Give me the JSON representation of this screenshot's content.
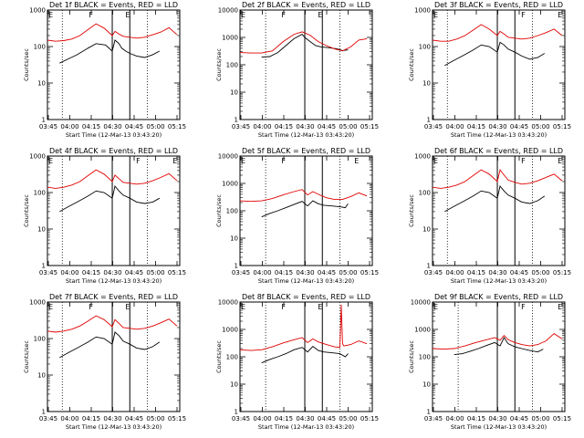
{
  "chart_data": [
    {
      "type": "line",
      "title": "Det 1f BLACK = Events, RED = LLD",
      "xlabel": "Start Time (12-Mar-13 03:43:20)",
      "ylabel": "Counts/sec",
      "scale": "log",
      "xlim": [
        0,
        98
      ],
      "ylim": [
        1,
        1000
      ],
      "xticks": [
        "03:45",
        "04:00",
        "04:15",
        "04:30",
        "04:45",
        "05:00",
        "05:15"
      ],
      "yticks": [
        "1",
        "10",
        "100",
        "1000"
      ],
      "markers": [
        {
          "label": "E",
          "x": 0
        },
        {
          "label": "F",
          "x": 30
        },
        {
          "label": "E",
          "x": 57
        }
      ],
      "dotted_x": [
        11,
        74
      ],
      "solid_x": [
        48,
        61
      ],
      "series": [
        {
          "name": "BLACK = Events",
          "x": [
            9,
            15,
            22,
            30,
            36,
            43,
            48,
            50,
            53,
            55,
            58,
            61,
            66,
            72,
            78,
            83
          ],
          "y": [
            35,
            45,
            60,
            90,
            120,
            110,
            75,
            150,
            120,
            90,
            75,
            65,
            55,
            50,
            60,
            75
          ]
        },
        {
          "name": "RED = LLD",
          "x": [
            0,
            6,
            12,
            18,
            24,
            30,
            36,
            42,
            48,
            50,
            53,
            56,
            61,
            66,
            72,
            78,
            84,
            90,
            96
          ],
          "y": [
            150,
            140,
            145,
            160,
            200,
            290,
            420,
            320,
            200,
            260,
            220,
            190,
            180,
            170,
            180,
            210,
            250,
            330,
            210
          ]
        }
      ]
    },
    {
      "type": "line",
      "title": "Det 2f BLACK = Events, RED = LLD",
      "xlabel": "Start Time (12-Mar-13 03:43:20)",
      "ylabel": "Counts/sec",
      "scale": "log",
      "xlim": [
        0,
        98
      ],
      "ylim": [
        1,
        10000
      ],
      "xticks": [
        "03:45",
        "04:00",
        "04:15",
        "04:30",
        "04:45",
        "05:00",
        "05:15"
      ],
      "yticks": [
        "1",
        "10",
        "100",
        "1000",
        "10000"
      ],
      "markers": [
        {
          "label": "E",
          "x": 0
        },
        {
          "label": "F",
          "x": 30
        },
        {
          "label": "E",
          "x": 57
        }
      ],
      "dotted_x": [
        19,
        74
      ],
      "solid_x": [
        48,
        61
      ],
      "series": [
        {
          "name": "BLACK = Events",
          "x": [
            16,
            22,
            28,
            34,
            40,
            46,
            48,
            52,
            56,
            60,
            66,
            72,
            76,
            80
          ],
          "y": [
            190,
            200,
            280,
            500,
            900,
            1300,
            1000,
            700,
            500,
            450,
            420,
            380,
            330,
            350
          ]
        },
        {
          "name": "RED = LLD",
          "x": [
            0,
            8,
            16,
            24,
            32,
            40,
            46,
            52,
            58,
            64,
            70,
            76,
            82,
            88,
            94
          ],
          "y": [
            280,
            270,
            270,
            320,
            700,
            1300,
            1600,
            1200,
            700,
            500,
            380,
            320,
            450,
            800,
            900
          ]
        }
      ]
    },
    {
      "type": "line",
      "title": "Det 3f BLACK = Events, RED = LLD",
      "xlabel": "Start Time (12-Mar-13 03:43:20)",
      "ylabel": "Counts/sec",
      "scale": "log",
      "xlim": [
        0,
        98
      ],
      "ylim": [
        1,
        1000
      ],
      "xticks": [
        "03:45",
        "04:00",
        "04:15",
        "04:30",
        "04:45",
        "05:00",
        "05:15"
      ],
      "yticks": [
        "1",
        "10",
        "100",
        "1000"
      ],
      "markers": [
        {
          "label": "E",
          "x": 0
        },
        {
          "label": "F",
          "x": 65
        },
        {
          "label": "E",
          "x": 92
        }
      ],
      "dotted_x": [
        11,
        74
      ],
      "solid_x": [
        48,
        61
      ],
      "series": [
        {
          "name": "BLACK = Events",
          "x": [
            9,
            15,
            22,
            30,
            36,
            42,
            48,
            50,
            53,
            56,
            61,
            66,
            72,
            78,
            83
          ],
          "y": [
            30,
            40,
            55,
            80,
            110,
            100,
            70,
            130,
            110,
            85,
            70,
            55,
            45,
            50,
            65
          ]
        },
        {
          "name": "RED = LLD",
          "x": [
            0,
            6,
            12,
            18,
            24,
            30,
            36,
            42,
            48,
            50,
            53,
            56,
            61,
            66,
            72,
            78,
            84,
            90,
            96
          ],
          "y": [
            150,
            140,
            140,
            160,
            200,
            280,
            400,
            300,
            200,
            260,
            220,
            180,
            170,
            160,
            170,
            200,
            240,
            300,
            200
          ]
        }
      ]
    },
    {
      "type": "line",
      "title": "Det 4f BLACK = Events, RED = LLD",
      "xlabel": "Start Time (12-Mar-13 03:43:20)",
      "ylabel": "Counts/sec",
      "scale": "log",
      "xlim": [
        0,
        98
      ],
      "ylim": [
        1,
        1000
      ],
      "xticks": [
        "03:45",
        "04:00",
        "04:15",
        "04:30",
        "04:45",
        "05:00",
        "05:15"
      ],
      "yticks": [
        "1",
        "10",
        "100",
        "1000"
      ],
      "markers": [
        {
          "label": "E",
          "x": 0
        },
        {
          "label": "F",
          "x": 65
        },
        {
          "label": "E",
          "x": 92
        }
      ],
      "dotted_x": [
        11,
        74
      ],
      "solid_x": [
        48,
        61
      ],
      "series": [
        {
          "name": "BLACK = Events",
          "x": [
            9,
            15,
            22,
            30,
            36,
            42,
            48,
            50,
            53,
            56,
            61,
            66,
            72,
            78,
            83
          ],
          "y": [
            30,
            40,
            55,
            80,
            110,
            100,
            70,
            150,
            110,
            85,
            70,
            55,
            50,
            55,
            70
          ]
        },
        {
          "name": "RED = LLD",
          "x": [
            0,
            6,
            12,
            18,
            24,
            30,
            36,
            42,
            48,
            50,
            53,
            56,
            61,
            66,
            72,
            78,
            84,
            90,
            96
          ],
          "y": [
            140,
            130,
            140,
            160,
            200,
            290,
            420,
            320,
            200,
            300,
            240,
            190,
            180,
            170,
            180,
            210,
            260,
            330,
            210
          ]
        }
      ]
    },
    {
      "type": "line",
      "title": "Det 5f BLACK = Events, RED = LLD",
      "xlabel": "Start Time (12-Mar-13 03:43:20)",
      "ylabel": "Counts/sec",
      "scale": "log",
      "xlim": [
        0,
        98
      ],
      "ylim": [
        1,
        10000
      ],
      "xticks": [
        "03:45",
        "04:00",
        "04:15",
        "04:30",
        "04:45",
        "05:00",
        "05:15"
      ],
      "yticks": [
        "1",
        "10",
        "100",
        "1000",
        "10000"
      ],
      "markers": [
        {
          "label": "E",
          "x": 0
        },
        {
          "label": "F",
          "x": 30
        },
        {
          "label": "E",
          "x": 84
        }
      ],
      "dotted_x": [
        19,
        74
      ],
      "solid_x": [
        48,
        61
      ],
      "series": [
        {
          "name": "BLACK = Events",
          "x": [
            16,
            22,
            28,
            34,
            40,
            46,
            50,
            54,
            58,
            62,
            68,
            74,
            78,
            80
          ],
          "y": [
            60,
            80,
            100,
            130,
            170,
            220,
            150,
            230,
            180,
            160,
            150,
            140,
            130,
            180
          ]
        },
        {
          "name": "RED = LLD",
          "x": [
            0,
            8,
            16,
            24,
            32,
            40,
            46,
            50,
            54,
            58,
            64,
            70,
            76,
            82,
            88,
            94
          ],
          "y": [
            230,
            220,
            230,
            280,
            380,
            500,
            600,
            380,
            500,
            400,
            300,
            260,
            260,
            330,
            450,
            350
          ]
        }
      ]
    },
    {
      "type": "line",
      "title": "Det 6f BLACK = Events, RED = LLD",
      "xlabel": "Start Time (12-Mar-13 03:43:20)",
      "ylabel": "Counts/sec",
      "scale": "log",
      "xlim": [
        0,
        98
      ],
      "ylim": [
        1,
        1000
      ],
      "xticks": [
        "03:45",
        "04:00",
        "04:15",
        "04:30",
        "04:45",
        "05:00",
        "05:15"
      ],
      "yticks": [
        "1",
        "10",
        "100",
        "1000"
      ],
      "markers": [
        {
          "label": "E",
          "x": 0
        },
        {
          "label": "F",
          "x": 65
        },
        {
          "label": "E",
          "x": 92
        }
      ],
      "dotted_x": [
        11,
        74
      ],
      "solid_x": [
        48,
        61
      ],
      "series": [
        {
          "name": "BLACK = Events",
          "x": [
            9,
            15,
            22,
            30,
            36,
            42,
            48,
            50,
            53,
            56,
            61,
            66,
            72,
            78,
            83
          ],
          "y": [
            30,
            40,
            55,
            80,
            110,
            100,
            70,
            150,
            110,
            85,
            70,
            55,
            50,
            60,
            80
          ]
        },
        {
          "name": "RED = LLD",
          "x": [
            0,
            6,
            12,
            18,
            24,
            30,
            36,
            42,
            48,
            50,
            53,
            56,
            61,
            66,
            72,
            78,
            84,
            90,
            96
          ],
          "y": [
            140,
            130,
            140,
            160,
            200,
            290,
            420,
            320,
            200,
            420,
            300,
            220,
            190,
            170,
            180,
            210,
            260,
            320,
            210
          ]
        }
      ]
    },
    {
      "type": "line",
      "title": "Det 7f BLACK = Events, RED = LLD",
      "xlabel": "Start Time (12-Mar-13 03:43:20)",
      "ylabel": "Counts/sec",
      "scale": "log",
      "xlim": [
        0,
        98
      ],
      "ylim": [
        1,
        1000
      ],
      "xticks": [
        "03:45",
        "04:00",
        "04:15",
        "04:30",
        "04:45",
        "05:00",
        "05:15"
      ],
      "yticks": [
        "1",
        "10",
        "100",
        "1000"
      ],
      "markers": [
        {
          "label": "E",
          "x": 0
        },
        {
          "label": "F",
          "x": 30
        },
        {
          "label": "E",
          "x": 57
        }
      ],
      "dotted_x": [
        11,
        74
      ],
      "solid_x": [
        48,
        61
      ],
      "series": [
        {
          "name": "BLACK = Events",
          "x": [
            9,
            15,
            22,
            30,
            36,
            42,
            48,
            50,
            53,
            56,
            61,
            66,
            72,
            78,
            83
          ],
          "y": [
            30,
            40,
            55,
            80,
            110,
            100,
            70,
            150,
            120,
            85,
            70,
            55,
            50,
            60,
            80
          ]
        },
        {
          "name": "RED = LLD",
          "x": [
            0,
            6,
            12,
            18,
            24,
            30,
            36,
            42,
            48,
            50,
            53,
            56,
            61,
            66,
            72,
            78,
            84,
            90,
            96
          ],
          "y": [
            160,
            150,
            160,
            180,
            220,
            300,
            420,
            330,
            210,
            330,
            260,
            200,
            190,
            180,
            190,
            220,
            270,
            340,
            220
          ]
        }
      ]
    },
    {
      "type": "line",
      "title": "Det 8f BLACK = Events, RED = LLD",
      "xlabel": "Start Time (12-Mar-13 03:43:20)",
      "ylabel": "Counts/sec",
      "scale": "log",
      "xlim": [
        0,
        98
      ],
      "ylim": [
        1,
        10000
      ],
      "xticks": [
        "03:45",
        "04:00",
        "04:15",
        "04:30",
        "04:45",
        "05:00",
        "05:15"
      ],
      "yticks": [
        "1",
        "10",
        "100",
        "1000",
        "10000"
      ],
      "markers": [
        {
          "label": "E",
          "x": 0
        },
        {
          "label": "F",
          "x": 30
        },
        {
          "label": "E",
          "x": 57
        }
      ],
      "dotted_x": [
        19,
        74
      ],
      "solid_x": [
        48,
        61
      ],
      "series": [
        {
          "name": "BLACK = Events",
          "x": [
            16,
            22,
            28,
            34,
            40,
            46,
            50,
            54,
            58,
            62,
            68,
            74,
            78,
            80
          ],
          "y": [
            60,
            80,
            100,
            130,
            180,
            220,
            150,
            240,
            170,
            150,
            140,
            130,
            100,
            130
          ]
        },
        {
          "name": "RED = LLD",
          "x": [
            0,
            8,
            16,
            24,
            32,
            40,
            46,
            50,
            54,
            58,
            64,
            70,
            74,
            75,
            76,
            77,
            82,
            88,
            94
          ],
          "y": [
            180,
            170,
            180,
            230,
            320,
            420,
            500,
            330,
            450,
            350,
            280,
            230,
            220,
            8000,
            300,
            250,
            280,
            380,
            300
          ]
        }
      ]
    },
    {
      "type": "line",
      "title": "Det 9f BLACK = Events, RED = LLD",
      "xlabel": "Start Time (12-Mar-13 03:43:20)",
      "ylabel": "Counts/sec",
      "scale": "log",
      "xlim": [
        0,
        98
      ],
      "ylim": [
        1,
        10000
      ],
      "xticks": [
        "03:45",
        "04:00",
        "04:15",
        "04:30",
        "04:45",
        "05:00",
        "05:15"
      ],
      "yticks": [
        "1",
        "10",
        "100",
        "1000",
        "10000"
      ],
      "markers": [
        {
          "label": "E",
          "x": 0
        },
        {
          "label": "F",
          "x": 65
        },
        {
          "label": "E",
          "x": 92
        }
      ],
      "dotted_x": [
        19,
        74
      ],
      "solid_x": [
        48,
        61
      ],
      "series": [
        {
          "name": "BLACK = Events",
          "x": [
            16,
            22,
            28,
            34,
            40,
            46,
            50,
            53,
            56,
            61,
            66,
            72,
            78,
            82
          ],
          "y": [
            120,
            130,
            160,
            200,
            260,
            330,
            250,
            500,
            300,
            230,
            200,
            170,
            150,
            190
          ]
        },
        {
          "name": "RED = LLD",
          "x": [
            0,
            8,
            16,
            24,
            32,
            40,
            46,
            50,
            53,
            56,
            61,
            66,
            72,
            78,
            84,
            90,
            96
          ],
          "y": [
            200,
            190,
            200,
            250,
            330,
            420,
            500,
            400,
            600,
            420,
            330,
            280,
            250,
            280,
            380,
            700,
            450
          ]
        }
      ]
    }
  ]
}
